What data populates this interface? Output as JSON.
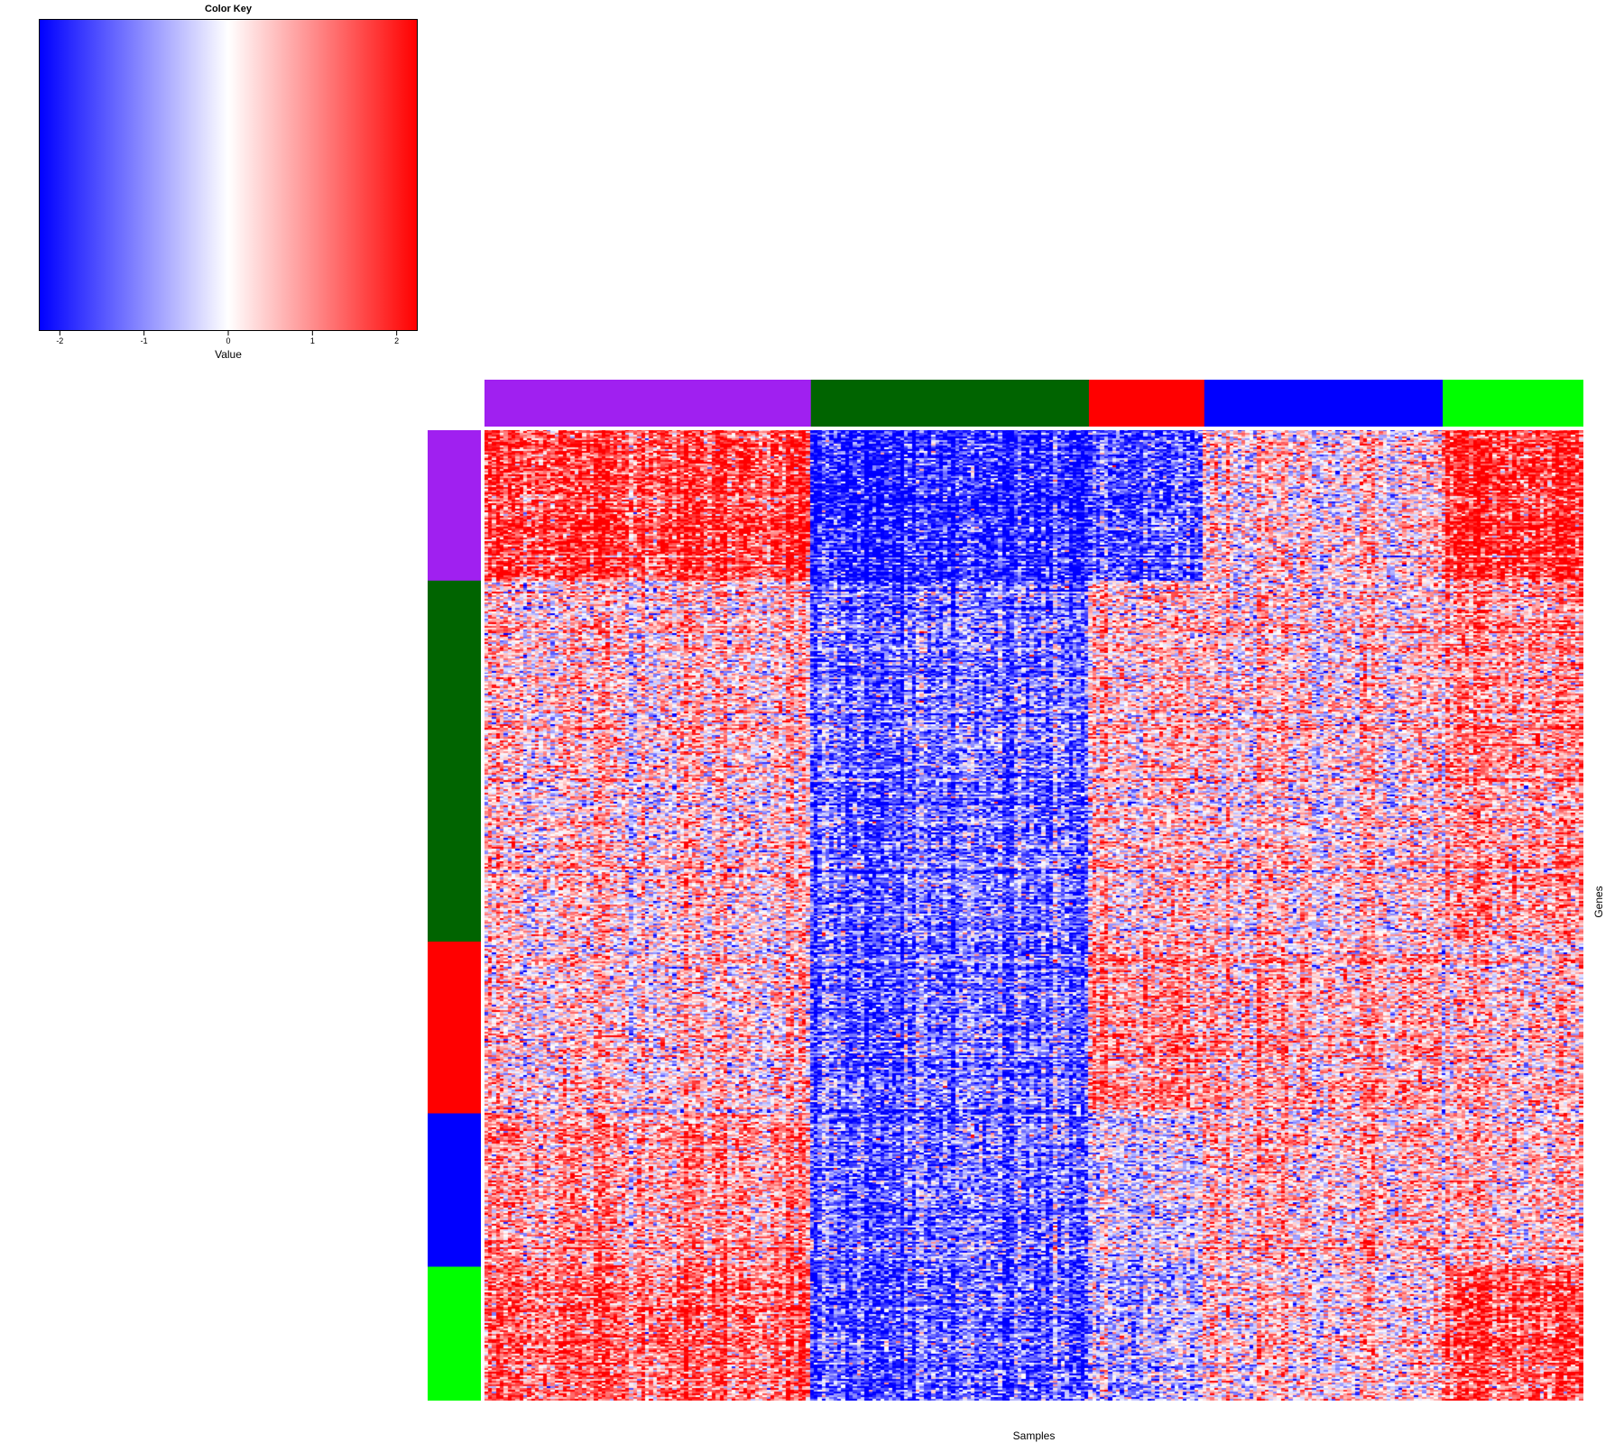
{
  "chart_data": {
    "type": "heatmap",
    "title": "",
    "xlabel": "Samples",
    "ylabel": "Genes",
    "color_key": {
      "title": "Color Key",
      "xlabel": "Value",
      "range": [
        -2.25,
        2.25
      ],
      "ticks": [
        -2,
        -1,
        0,
        1,
        2
      ],
      "tick_labels": [
        "-2",
        "-1",
        "0",
        "1",
        "2"
      ],
      "colors": [
        "#0000ff",
        "#ffffff",
        "#ff0000"
      ]
    },
    "column_groups": [
      {
        "color": "#a020f0",
        "fraction": 0.297
      },
      {
        "color": "#006400",
        "fraction": 0.253
      },
      {
        "color": "#ff0000",
        "fraction": 0.105
      },
      {
        "color": "#0000ff",
        "fraction": 0.217
      },
      {
        "color": "#00ff00",
        "fraction": 0.128
      }
    ],
    "row_groups": [
      {
        "color": "#a020f0",
        "fraction": 0.155
      },
      {
        "color": "#006400",
        "fraction": 0.372
      },
      {
        "color": "#ff0000",
        "fraction": 0.177
      },
      {
        "color": "#0000ff",
        "fraction": 0.158
      },
      {
        "color": "#00ff00",
        "fraction": 0.138
      }
    ],
    "group_means": [
      [
        1.8,
        -2.0,
        -1.6,
        0.3,
        1.9
      ],
      [
        0.4,
        -1.3,
        0.3,
        0.3,
        0.8
      ],
      [
        0.3,
        -1.4,
        0.8,
        0.6,
        0.3
      ],
      [
        0.9,
        -1.3,
        -0.4,
        0.5,
        0.4
      ],
      [
        1.3,
        -1.6,
        -0.8,
        0.2,
        1.4
      ]
    ]
  }
}
